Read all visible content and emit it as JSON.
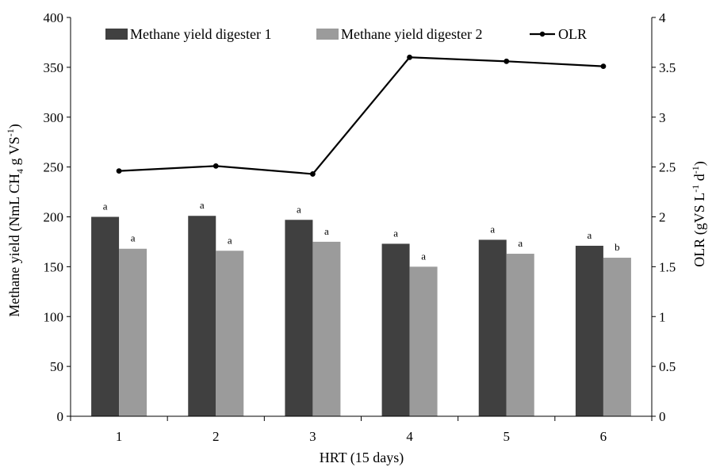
{
  "chart_data": {
    "type": "bar",
    "categories": [
      "1",
      "2",
      "3",
      "4",
      "5",
      "6"
    ],
    "xlabel": "HRT (15 days)",
    "ylabel": "Methane yield (NmL CH4 g VS-1)",
    "ylabel_parts": {
      "main": "Methane yield (NmL CH",
      "sub": "4",
      "mid": " g VS",
      "sup": "-1",
      "end": ")"
    },
    "y2label": "OLR (gVS L-1 d-1)",
    "y2label_parts": {
      "main": "OLR (gVS L",
      "sup1": "-1",
      "mid": " d",
      "sup2": "-1",
      "end": ")"
    },
    "ylim": [
      0,
      400
    ],
    "yticks": [
      "0",
      "50",
      "100",
      "150",
      "200",
      "250",
      "300",
      "350",
      "400"
    ],
    "y2lim": [
      0,
      4
    ],
    "y2ticks": [
      "0",
      "0.5",
      "1",
      "1.5",
      "2",
      "2.5",
      "3",
      "3.5",
      "4"
    ],
    "series": [
      {
        "name": "Methane yield digester 1",
        "type": "bar",
        "color": "#404040",
        "values": [
          200,
          201,
          197,
          173,
          177,
          171
        ],
        "labels": [
          "a",
          "a",
          "a",
          "a",
          "a",
          "a"
        ]
      },
      {
        "name": "Methane yield digester 2",
        "type": "bar",
        "color": "#9b9b9b",
        "values": [
          168,
          166,
          175,
          150,
          163,
          159
        ],
        "labels": [
          "a",
          "a",
          "a",
          "a",
          "a",
          "b"
        ]
      },
      {
        "name": "OLR",
        "type": "line",
        "axis": "right",
        "color": "#000000",
        "values": [
          2.46,
          2.51,
          2.43,
          3.6,
          3.56,
          3.51
        ]
      }
    ],
    "legend": "top"
  }
}
